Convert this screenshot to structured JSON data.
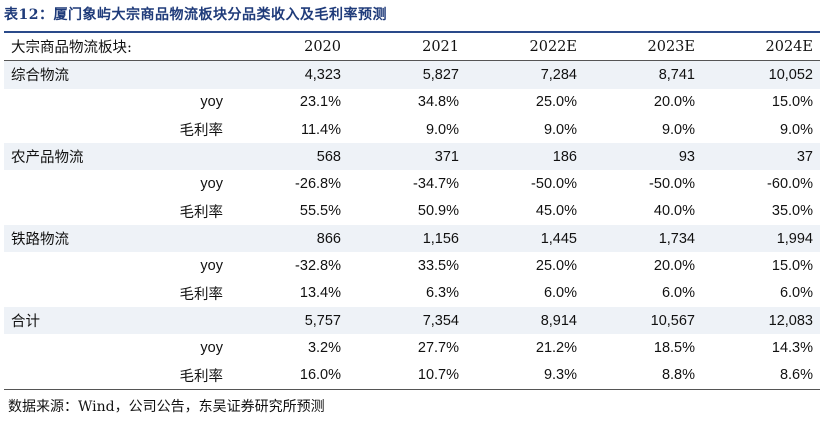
{
  "title": "表12：厦门象屿大宗商品物流板块分品类收入及毛利率预测",
  "header": {
    "label": "大宗商品物流板块:",
    "years": [
      "2020",
      "2021",
      "2022E",
      "2023E",
      "2024E"
    ]
  },
  "rows": [
    {
      "label": "综合物流",
      "type": "segment",
      "values": [
        "4,323",
        "5,827",
        "7,284",
        "8,741",
        "10,052"
      ]
    },
    {
      "label": "yoy",
      "type": "yoy",
      "values": [
        "23.1%",
        "34.8%",
        "25.0%",
        "20.0%",
        "15.0%"
      ]
    },
    {
      "label": "毛利率",
      "type": "margin",
      "values": [
        "11.4%",
        "9.0%",
        "9.0%",
        "9.0%",
        "9.0%"
      ]
    },
    {
      "label": "农产品物流",
      "type": "segment",
      "values": [
        "568",
        "371",
        "186",
        "93",
        "37"
      ]
    },
    {
      "label": "yoy",
      "type": "yoy",
      "values": [
        "-26.8%",
        "-34.7%",
        "-50.0%",
        "-50.0%",
        "-60.0%"
      ]
    },
    {
      "label": "毛利率",
      "type": "margin",
      "values": [
        "55.5%",
        "50.9%",
        "45.0%",
        "40.0%",
        "35.0%"
      ]
    },
    {
      "label": "铁路物流",
      "type": "segment",
      "values": [
        "866",
        "1,156",
        "1,445",
        "1,734",
        "1,994"
      ]
    },
    {
      "label": "yoy",
      "type": "yoy",
      "values": [
        "-32.8%",
        "33.5%",
        "25.0%",
        "20.0%",
        "15.0%"
      ]
    },
    {
      "label": "毛利率",
      "type": "margin",
      "values": [
        "13.4%",
        "6.3%",
        "6.0%",
        "6.0%",
        "6.0%"
      ]
    },
    {
      "label": "合计",
      "type": "segment",
      "values": [
        "5,757",
        "7,354",
        "8,914",
        "10,567",
        "12,083"
      ]
    },
    {
      "label": "yoy",
      "type": "yoy",
      "values": [
        "3.2%",
        "27.7%",
        "21.2%",
        "18.5%",
        "14.3%"
      ]
    },
    {
      "label": "毛利率",
      "type": "margin",
      "values": [
        "16.0%",
        "10.7%",
        "9.3%",
        "8.8%",
        "8.6%"
      ]
    }
  ],
  "source": "数据来源：Wind，公司公告，东吴证券研究所预测",
  "colors": {
    "title": "#1f3b7a",
    "rule": "#2a4a8a",
    "segment_row_bg": "#eef2f7"
  }
}
